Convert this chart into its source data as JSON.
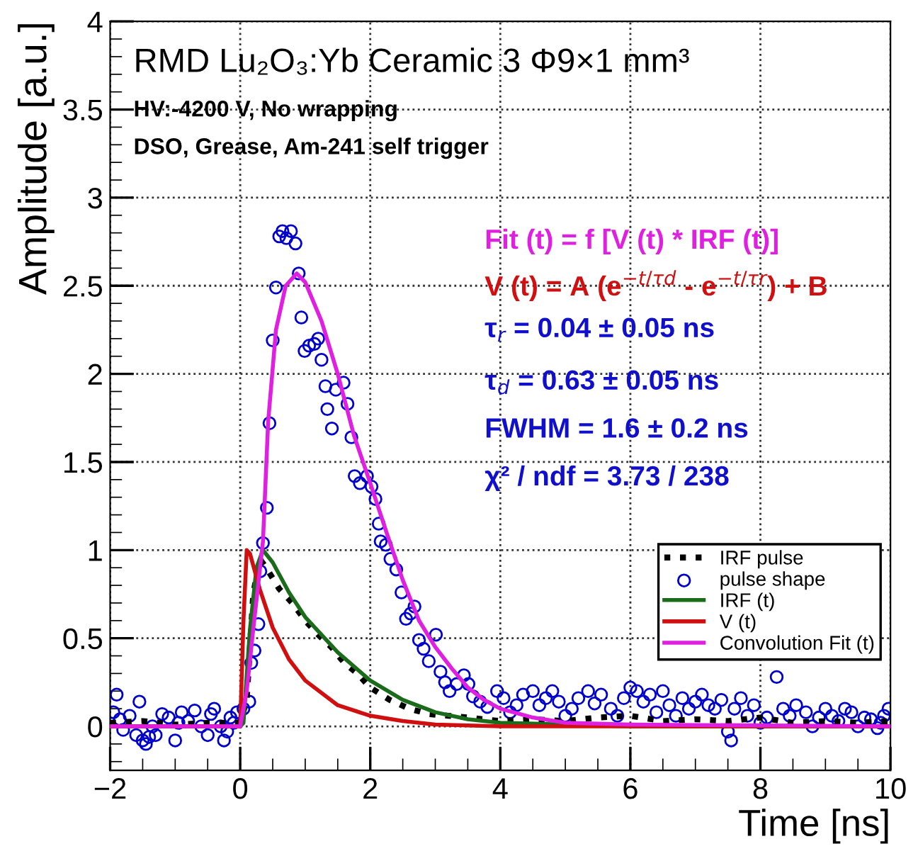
{
  "chart_data": {
    "type": "line",
    "title": "RMD Lu₂O₃:Yb Ceramic 3 Φ9×1 mm³",
    "subtitle": "HV:-4200 V, No wrapping\nDSO, Grease, Am-241 self trigger",
    "xlabel": "Time [ns]",
    "ylabel": "Amplitude [a.u.]",
    "annotations": [
      "Fit (t) = f [V (t) * IRF (t)]",
      "V (t) = A (e$^{−t/τd}$ - e$^{−t/τr}$) + B",
      "τ$_{r}$ = 0.04 ± 0.05 ns",
      "τ$_{d}$ = 0.63 ± 0.05 ns",
      "FWHM = 1.6 ± 0.2 ns",
      "χ² / ndf = 3.73 / 238"
    ],
    "xlim": [
      -2,
      10
    ],
    "ylim": [
      -0.25,
      4
    ],
    "xticks": [
      {
        "value": -2,
        "label": "−2"
      },
      0,
      2,
      4,
      6,
      8,
      10
    ],
    "yticks": [
      0,
      0.5,
      1,
      1.5,
      2,
      2.5,
      3,
      3.5,
      4
    ],
    "grid": true,
    "legend": "right",
    "series": [
      {
        "name": "IRF pulse",
        "color": "#000000",
        "line_style": "dotted",
        "marker": "none",
        "x": [
          -2,
          -1.5,
          -1,
          -0.5,
          0,
          0.1,
          0.2,
          0.3,
          0.4,
          0.6,
          0.8,
          1.0,
          1.2,
          1.4,
          1.6,
          1.8,
          2.0,
          2.3,
          2.6,
          2.9,
          3.2,
          3.5,
          4,
          4.5,
          5,
          5.5,
          6,
          6.5,
          7,
          7.5,
          8,
          8.5,
          9,
          9.5,
          10
        ],
        "values": [
          0.02,
          0.03,
          0.01,
          0.02,
          0.02,
          0.15,
          0.75,
          0.95,
          0.9,
          0.78,
          0.7,
          0.6,
          0.52,
          0.45,
          0.36,
          0.3,
          0.22,
          0.15,
          0.1,
          0.07,
          0.06,
          0.05,
          0.03,
          0.04,
          0.03,
          0.05,
          0.06,
          0.03,
          0.04,
          0.03,
          0.05,
          0.02,
          0.03,
          0.02,
          0.03
        ]
      },
      {
        "name": "pulse shape",
        "type": "scatter",
        "color": "#0000cc",
        "marker": "circle",
        "x": [
          -1.95,
          -1.9,
          -1.85,
          -1.8,
          -1.7,
          -1.6,
          -1.55,
          -1.5,
          -1.45,
          -1.4,
          -1.35,
          -1.3,
          -1.2,
          -1.1,
          -1.0,
          -0.95,
          -0.9,
          -0.8,
          -0.7,
          -0.6,
          -0.5,
          -0.45,
          -0.4,
          -0.3,
          -0.25,
          -0.2,
          -0.15,
          -0.1,
          -0.05,
          0.05,
          0.14,
          0.17,
          0.22,
          0.28,
          0.31,
          0.35,
          0.41,
          0.45,
          0.5,
          0.55,
          0.6,
          0.65,
          0.71,
          0.78,
          0.85,
          0.9,
          0.94,
          0.99,
          1.06,
          1.14,
          1.2,
          1.25,
          1.31,
          1.34,
          1.41,
          1.47,
          1.59,
          1.65,
          1.71,
          1.76,
          1.84,
          1.95,
          2.02,
          2.08,
          2.13,
          2.16,
          2.24,
          2.31,
          2.4,
          2.48,
          2.55,
          2.62,
          2.68,
          2.75,
          2.82,
          2.9,
          3.01,
          3.08,
          3.15,
          3.22,
          3.33,
          3.44,
          3.51,
          3.58,
          3.69,
          3.8,
          3.95,
          4.05,
          4.15,
          4.25,
          4.35,
          4.5,
          4.6,
          4.7,
          4.8,
          4.9,
          5.0,
          5.1,
          5.2,
          5.35,
          5.45,
          5.55,
          5.7,
          5.8,
          5.9,
          6.0,
          6.1,
          6.2,
          6.3,
          6.4,
          6.5,
          6.6,
          6.7,
          6.8,
          6.9,
          7.0,
          7.1,
          7.2,
          7.3,
          7.4,
          7.5,
          7.55,
          7.6,
          7.7,
          7.8,
          7.9,
          8.0,
          8.1,
          8.25,
          8.35,
          8.45,
          8.55,
          8.7,
          8.8,
          8.9,
          9.0,
          9.1,
          9.2,
          9.3,
          9.4,
          9.5,
          9.6,
          9.7,
          9.8,
          9.85,
          9.9,
          9.97
        ],
        "values": [
          0.08,
          0.18,
          0.04,
          -0.02,
          0.06,
          -0.05,
          0.14,
          -0.08,
          -0.1,
          -0.06,
          0.0,
          -0.05,
          0.07,
          0.05,
          -0.08,
          0.02,
          0.08,
          0.03,
          0.09,
          0.0,
          -0.05,
          0.07,
          0.1,
          0.0,
          -0.08,
          -0.03,
          0.05,
          0.02,
          0.08,
          0.1,
          0.14,
          0.36,
          0.43,
          0.58,
          0.88,
          1.04,
          1.24,
          1.72,
          2.19,
          2.49,
          2.78,
          2.81,
          2.77,
          2.81,
          2.74,
          2.57,
          2.32,
          2.13,
          2.16,
          2.17,
          2.2,
          2.08,
          1.93,
          1.8,
          1.69,
          1.91,
          1.95,
          1.83,
          1.64,
          1.42,
          1.38,
          1.42,
          1.36,
          1.29,
          1.15,
          1.05,
          1.03,
          0.95,
          0.89,
          0.76,
          0.61,
          0.64,
          0.68,
          0.49,
          0.44,
          0.37,
          0.52,
          0.31,
          0.25,
          0.2,
          0.24,
          0.29,
          0.24,
          0.17,
          0.14,
          0.11,
          0.2,
          0.16,
          0.08,
          0.12,
          0.18,
          0.2,
          0.12,
          0.16,
          0.2,
          0.14,
          0.06,
          0.1,
          0.16,
          0.2,
          0.13,
          0.18,
          0.1,
          0.06,
          0.16,
          0.22,
          0.2,
          0.14,
          0.18,
          0.08,
          0.2,
          0.12,
          0.06,
          0.16,
          0.1,
          0.14,
          0.18,
          0.12,
          0.1,
          0.15,
          -0.03,
          -0.08,
          0.1,
          0.16,
          0.06,
          0.12,
          0.02,
          0.05,
          0.28,
          0.1,
          0.06,
          0.12,
          0.08,
          0.0,
          0.05,
          0.1,
          0.06,
          0.03,
          0.1,
          0.08,
          0.0,
          0.05,
          0.04,
          -0.01,
          0.02,
          0.06,
          0.1
        ]
      },
      {
        "name": "IRF (t)",
        "color": "#1a6b1a",
        "line_style": "solid",
        "marker": "none",
        "x": [
          -2,
          0.0,
          0.05,
          0.15,
          0.25,
          0.35,
          0.5,
          0.75,
          1.0,
          1.5,
          2.0,
          2.5,
          3.0,
          3.5,
          4.0,
          5.0,
          6.0,
          10
        ],
        "values": [
          0,
          0,
          0.02,
          0.55,
          0.9,
          1.0,
          0.93,
          0.76,
          0.62,
          0.42,
          0.26,
          0.15,
          0.08,
          0.04,
          0.02,
          0.01,
          0,
          0
        ]
      },
      {
        "name": "V (t)",
        "color": "#d01010",
        "line_style": "solid",
        "marker": "none",
        "x": [
          -2,
          0.0,
          0.05,
          0.1,
          0.15,
          0.3,
          0.5,
          0.75,
          1.0,
          1.5,
          2.0,
          2.5,
          3.0,
          4.0,
          5.0,
          10
        ],
        "values": [
          0,
          0,
          0.6,
          1.0,
          0.98,
          0.78,
          0.56,
          0.38,
          0.26,
          0.12,
          0.06,
          0.03,
          0.01,
          0,
          0,
          0
        ]
      },
      {
        "name": "Convolution Fit (t)",
        "color": "#e020e0",
        "line_style": "solid",
        "marker": "none",
        "x": [
          -2,
          0.0,
          0.1,
          0.2,
          0.35,
          0.43,
          0.55,
          0.7,
          0.87,
          1.0,
          1.25,
          1.5,
          1.75,
          2.0,
          2.25,
          2.5,
          2.75,
          3.0,
          3.25,
          3.5,
          3.75,
          4.0,
          4.5,
          5.0,
          6.0,
          10
        ],
        "values": [
          0,
          0,
          0.2,
          0.55,
          1.05,
          1.73,
          2.25,
          2.5,
          2.57,
          2.52,
          2.3,
          2.0,
          1.65,
          1.38,
          1.1,
          0.83,
          0.6,
          0.45,
          0.33,
          0.22,
          0.15,
          0.1,
          0.05,
          0.02,
          0.01,
          0
        ]
      }
    ]
  }
}
